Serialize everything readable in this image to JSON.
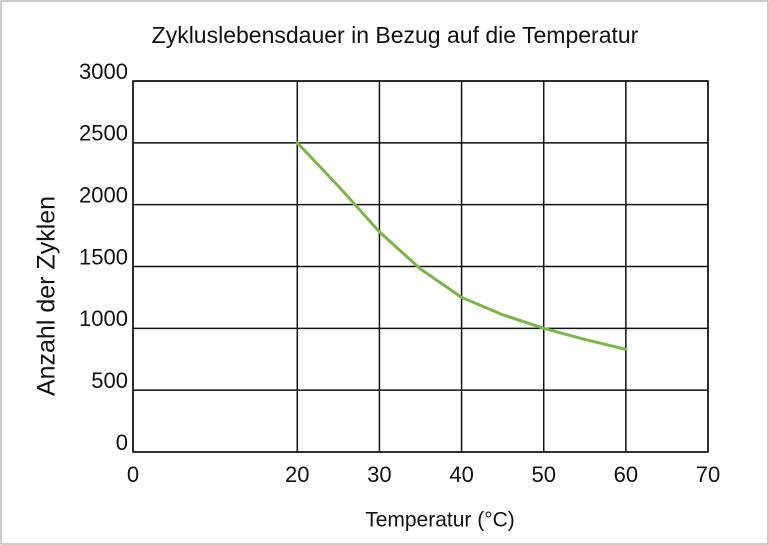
{
  "chart_data": {
    "type": "line",
    "title": "Zykluslebensdauer in Bezug auf die Temperatur",
    "x_label": "Temperatur   (°C)",
    "y_label": "Anzahl der Zyklen",
    "x": [
      20,
      25,
      30,
      35,
      40,
      45,
      50,
      55,
      60
    ],
    "values": [
      2500,
      2150,
      1780,
      1480,
      1250,
      1110,
      1000,
      910,
      830
    ],
    "color": "#7ab648",
    "xlim": [
      0,
      70
    ],
    "xticks": [
      0,
      20,
      30,
      40,
      50,
      60,
      70
    ],
    "ylim": [
      0,
      3000
    ],
    "yticks": [
      0,
      500,
      1000,
      1500,
      2000,
      2500,
      3000
    ],
    "grid": true
  }
}
